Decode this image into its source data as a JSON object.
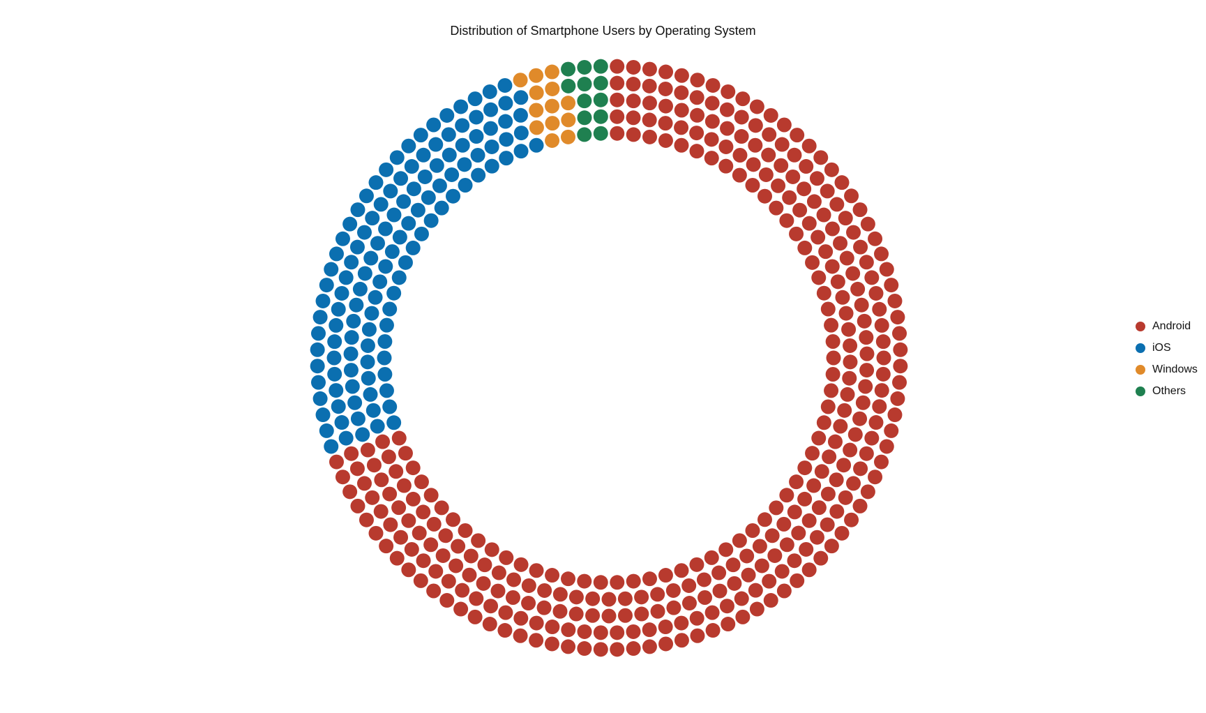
{
  "chart_data": {
    "type": "pie",
    "style": "waffle-donut",
    "title": "Distribution of Smartphone Users by Operating System",
    "categories": [
      "Android",
      "iOS",
      "Windows",
      "Others"
    ],
    "values": [
      70.0,
      25.0,
      2.5,
      2.5
    ],
    "unit": "percent",
    "colors": {
      "Android": "#b83a2e",
      "iOS": "#0b6fb0",
      "Windows": "#e08a2a",
      "Others": "#1f8050"
    },
    "legend_position": "right",
    "rings": 5,
    "start_angle": "top",
    "direction": "clockwise",
    "grid": false
  }
}
